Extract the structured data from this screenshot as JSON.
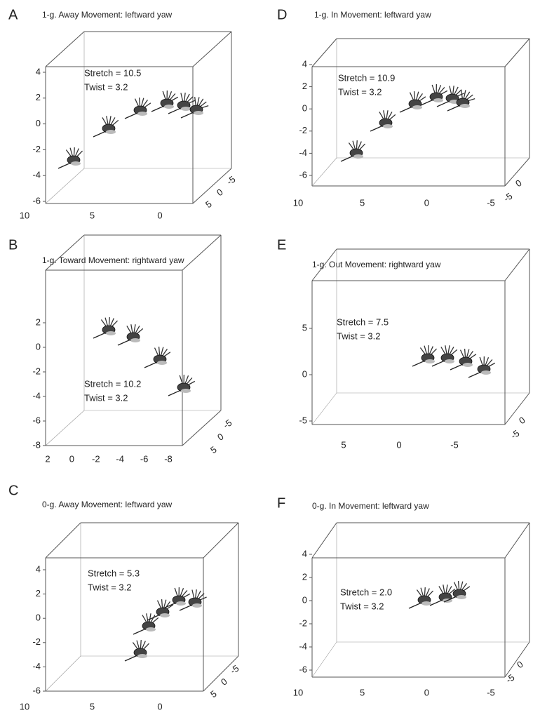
{
  "panels": [
    {
      "letter": "A",
      "title": "1-g. Away Movement:  leftward yaw",
      "annotation": [
        "Stretch = 10.5",
        "Twist = 3.2"
      ],
      "z_ticks": [
        4,
        2,
        0,
        -2,
        -4,
        -6
      ],
      "x_ticks": [
        10,
        5,
        0
      ],
      "y_ticks": [
        -5,
        0,
        5
      ]
    },
    {
      "letter": "B",
      "title": "1-g. Toward Movement:  rightward yaw",
      "annotation": [
        "Stretch = 10.2",
        "Twist = 3.2"
      ],
      "z_ticks": [
        2,
        0,
        -2,
        -4,
        -6,
        -8
      ],
      "x_ticks": [
        2,
        0,
        -2,
        -4,
        -6,
        -8
      ],
      "y_ticks": [
        -5,
        0,
        5
      ]
    },
    {
      "letter": "C",
      "title": "0-g. Away Movement:  leftward yaw",
      "annotation": [
        "Stretch = 5.3",
        "Twist = 3.2"
      ],
      "z_ticks": [
        4,
        2,
        0,
        -2,
        -4,
        -6
      ],
      "x_ticks": [
        10,
        5,
        0
      ],
      "y_ticks": [
        -5,
        0,
        5
      ]
    },
    {
      "letter": "D",
      "title": "1-g. In Movement:  leftward yaw",
      "annotation": [
        "Stretch = 10.9",
        "Twist = 3.2"
      ],
      "z_ticks": [
        4,
        2,
        0,
        -2,
        -4,
        -6
      ],
      "x_ticks": [
        10,
        5,
        0,
        -5
      ],
      "y_ticks": [
        0,
        -5
      ]
    },
    {
      "letter": "E",
      "title": "1-g. Out Movement:  rightward yaw",
      "annotation": [
        "Stretch = 7.5",
        "Twist = 3.2"
      ],
      "z_ticks": [
        5,
        0,
        -5
      ],
      "x_ticks": [
        5,
        0,
        -5
      ],
      "y_ticks": [
        0,
        -5
      ]
    },
    {
      "letter": "F",
      "title": "0-g. In Movement:  leftward yaw",
      "annotation": [
        "Stretch = 2.0",
        "Twist = 3.2"
      ],
      "z_ticks": [
        4,
        2,
        0,
        -2,
        -4,
        -6
      ],
      "x_ticks": [
        10,
        5,
        0,
        -5
      ],
      "y_ticks": [
        0,
        -5
      ]
    }
  ]
}
